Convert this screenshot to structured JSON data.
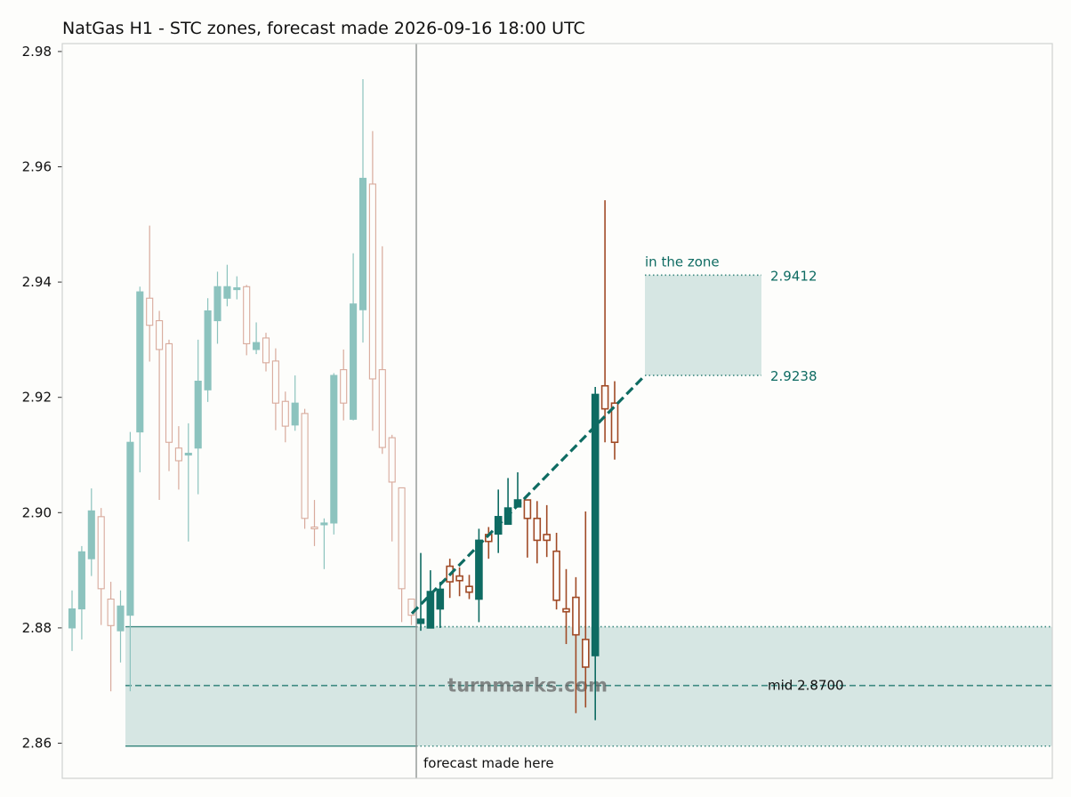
{
  "chart_data": {
    "type": "candlestick",
    "title": "NatGas H1 - STC zones, forecast made 2026-09-16 18:00 UTC",
    "xlabel": "",
    "ylabel": "",
    "ylim": [
      2.8542,
      2.9815
    ],
    "y_ticks": [
      "2.86",
      "2.88",
      "2.90",
      "2.92",
      "2.94",
      "2.96",
      "2.98"
    ],
    "y_tick_values": [
      2.86,
      2.88,
      2.9,
      2.92,
      2.94,
      2.96,
      2.98
    ],
    "grid": false,
    "colors": {
      "history_up": "#8cc3be",
      "history_down": "#d8aa9c",
      "forecast_up": "#0e6b62",
      "forecast_down": "#a04a26",
      "zone_fill": "#d6e6e3",
      "zone_line": "#3e8a82",
      "trend": "#0e6b62",
      "divider": "#8f9593"
    },
    "history_candles": [
      {
        "o": 2.88,
        "h": 2.8865,
        "l": 2.876,
        "c": 2.8833
      },
      {
        "o": 2.8833,
        "h": 2.8942,
        "l": 2.878,
        "c": 2.8932
      },
      {
        "o": 2.892,
        "h": 2.9042,
        "l": 2.889,
        "c": 2.9003
      },
      {
        "o": 2.8993,
        "h": 2.9008,
        "l": 2.8805,
        "c": 2.8868
      },
      {
        "o": 2.885,
        "h": 2.888,
        "l": 2.869,
        "c": 2.8804
      },
      {
        "o": 2.8795,
        "h": 2.8865,
        "l": 2.874,
        "c": 2.8838
      },
      {
        "o": 2.8822,
        "h": 2.914,
        "l": 2.869,
        "c": 2.9122
      },
      {
        "o": 2.914,
        "h": 2.9392,
        "l": 2.907,
        "c": 2.9383
      },
      {
        "o": 2.9372,
        "h": 2.9498,
        "l": 2.9262,
        "c": 2.9325
      },
      {
        "o": 2.9333,
        "h": 2.935,
        "l": 2.9022,
        "c": 2.9283
      },
      {
        "o": 2.9293,
        "h": 2.93,
        "l": 2.9072,
        "c": 2.9122
      },
      {
        "o": 2.9112,
        "h": 2.915,
        "l": 2.904,
        "c": 2.909
      },
      {
        "o": 2.91,
        "h": 2.9155,
        "l": 2.895,
        "c": 2.9103
      },
      {
        "o": 2.9112,
        "h": 2.93,
        "l": 2.9032,
        "c": 2.9228
      },
      {
        "o": 2.9213,
        "h": 2.9372,
        "l": 2.9192,
        "c": 2.935
      },
      {
        "o": 2.9333,
        "h": 2.9418,
        "l": 2.9293,
        "c": 2.9392
      },
      {
        "o": 2.9372,
        "h": 2.943,
        "l": 2.9358,
        "c": 2.9392
      },
      {
        "o": 2.939,
        "h": 2.941,
        "l": 2.937,
        "c": 2.939
      },
      {
        "o": 2.9392,
        "h": 2.9395,
        "l": 2.9273,
        "c": 2.9293
      },
      {
        "o": 2.9283,
        "h": 2.933,
        "l": 2.9275,
        "c": 2.9295
      },
      {
        "o": 2.9303,
        "h": 2.9312,
        "l": 2.9245,
        "c": 2.926
      },
      {
        "o": 2.9263,
        "h": 2.9285,
        "l": 2.9143,
        "c": 2.919
      },
      {
        "o": 2.9193,
        "h": 2.921,
        "l": 2.9122,
        "c": 2.915
      },
      {
        "o": 2.9152,
        "h": 2.9238,
        "l": 2.9142,
        "c": 2.919
      },
      {
        "o": 2.9172,
        "h": 2.918,
        "l": 2.8972,
        "c": 2.899
      },
      {
        "o": 2.8975,
        "h": 2.9022,
        "l": 2.8942,
        "c": 2.8972
      },
      {
        "o": 2.898,
        "h": 2.899,
        "l": 2.8902,
        "c": 2.8982
      },
      {
        "o": 2.8982,
        "h": 2.9242,
        "l": 2.8962,
        "c": 2.9238
      },
      {
        "o": 2.9248,
        "h": 2.9283,
        "l": 2.916,
        "c": 2.919
      },
      {
        "o": 2.9162,
        "h": 2.945,
        "l": 2.916,
        "c": 2.9362
      },
      {
        "o": 2.9352,
        "h": 2.9752,
        "l": 2.9295,
        "c": 2.958
      },
      {
        "o": 2.957,
        "h": 2.9662,
        "l": 2.9142,
        "c": 2.9232
      },
      {
        "o": 2.9248,
        "h": 2.9462,
        "l": 2.9102,
        "c": 2.9113
      },
      {
        "o": 2.913,
        "h": 2.9135,
        "l": 2.895,
        "c": 2.9053
      },
      {
        "o": 2.9043,
        "h": 2.9043,
        "l": 2.881,
        "c": 2.8868
      },
      {
        "o": 2.885,
        "h": 2.885,
        "l": 2.8805,
        "c": 2.8822
      }
    ],
    "forecast_candles": [
      {
        "o": 2.8808,
        "h": 2.893,
        "l": 2.8795,
        "c": 2.8815
      },
      {
        "o": 2.88,
        "h": 2.89,
        "l": 2.88,
        "c": 2.8863
      },
      {
        "o": 2.8833,
        "h": 2.888,
        "l": 2.88,
        "c": 2.8867
      },
      {
        "o": 2.8907,
        "h": 2.892,
        "l": 2.8852,
        "c": 2.888
      },
      {
        "o": 2.889,
        "h": 2.8905,
        "l": 2.8855,
        "c": 2.8882
      },
      {
        "o": 2.8872,
        "h": 2.8892,
        "l": 2.885,
        "c": 2.8862
      },
      {
        "o": 2.885,
        "h": 2.8972,
        "l": 2.881,
        "c": 2.8952
      },
      {
        "o": 2.8962,
        "h": 2.8975,
        "l": 2.892,
        "c": 2.895
      },
      {
        "o": 2.8963,
        "h": 2.904,
        "l": 2.893,
        "c": 2.8993
      },
      {
        "o": 2.898,
        "h": 2.906,
        "l": 2.898,
        "c": 2.9008
      },
      {
        "o": 2.901,
        "h": 2.907,
        "l": 2.901,
        "c": 2.9022
      },
      {
        "o": 2.9022,
        "h": 2.9022,
        "l": 2.8922,
        "c": 2.899
      },
      {
        "o": 2.899,
        "h": 2.902,
        "l": 2.8912,
        "c": 2.8952
      },
      {
        "o": 2.8962,
        "h": 2.9013,
        "l": 2.8923,
        "c": 2.8952
      },
      {
        "o": 2.8933,
        "h": 2.8965,
        "l": 2.8832,
        "c": 2.8848
      },
      {
        "o": 2.8833,
        "h": 2.8902,
        "l": 2.8772,
        "c": 2.8828
      },
      {
        "o": 2.8853,
        "h": 2.8888,
        "l": 2.8652,
        "c": 2.8788
      },
      {
        "o": 2.878,
        "h": 2.9002,
        "l": 2.8662,
        "c": 2.8732
      },
      {
        "o": 2.8752,
        "h": 2.9218,
        "l": 2.864,
        "c": 2.9205
      },
      {
        "o": 2.922,
        "h": 2.9542,
        "l": 2.9122,
        "c": 2.918
      },
      {
        "o": 2.919,
        "h": 2.9228,
        "l": 2.9092,
        "c": 2.9122
      }
    ],
    "trend_line": {
      "from": 2.8825,
      "to": 2.9238
    },
    "target_zone": {
      "low": 2.9238,
      "high": 2.9412
    },
    "support_zone": {
      "low": 2.8595,
      "high": 2.8802,
      "mid": 2.87
    },
    "annotations": {
      "zone_label": "in the zone",
      "zone_high_label": "2.9412",
      "zone_low_label": "2.9238",
      "mid_label": "mid 2.8700",
      "forecast_label": "forecast made here",
      "watermark": "turnmarks.com"
    }
  }
}
